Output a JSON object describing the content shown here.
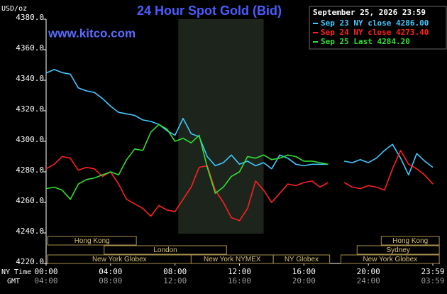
{
  "chart_data": {
    "type": "line",
    "title": "24 Hour Spot Gold (Bid)",
    "watermark": "www.kitco.com",
    "timestamp": "September 25, 2026 23:59",
    "ylabel": "USD/oz",
    "xlabel": "NY Time",
    "x2label": "GMT",
    "x": [
      0,
      0.5,
      1,
      1.5,
      2,
      2.5,
      3,
      3.5,
      4,
      4.5,
      5,
      5.5,
      6,
      6.5,
      7,
      7.5,
      8,
      8.5,
      9,
      9.5,
      10,
      10.5,
      11,
      11.5,
      12,
      12.5,
      13,
      13.5,
      14,
      14.5,
      15,
      15.5,
      16,
      16.5,
      17,
      17.5,
      18,
      18.5,
      19,
      19.5,
      20,
      20.5,
      21,
      21.5,
      22,
      22.5,
      23,
      23.5,
      24
    ],
    "series": [
      {
        "name": "Sep 23 NY close 4286.00",
        "color": "#40c8ff",
        "values": [
          4344.7,
          4347,
          4345,
          4344,
          4335,
          4333,
          4332,
          4328,
          4323,
          4319,
          4318,
          4317,
          4314,
          4313,
          4311,
          4307,
          4304,
          4315,
          4305,
          4303,
          4290,
          4284,
          4286,
          4291,
          4285,
          4287,
          4284,
          4286,
          4282,
          4291,
          4289,
          4285,
          4284,
          4285,
          4285,
          4285,
          null,
          4287,
          4286,
          4288,
          4286,
          4289,
          4294,
          4298,
          4289,
          4278,
          4292,
          4287,
          4283
        ]
      },
      {
        "name": "Sep 24 NY close 4273.40",
        "color": "#ff2020",
        "values": [
          4282,
          4285,
          4290,
          4289,
          4281,
          4283,
          4282,
          4277,
          4280,
          4272,
          4262,
          4259,
          4256,
          4251,
          4258,
          4255,
          4254,
          4262,
          4270,
          4283,
          4284,
          4268,
          4260,
          4250,
          4248,
          4256,
          4274,
          4268,
          4260,
          4266,
          4272,
          4271,
          4273,
          4274,
          4270,
          4273,
          null,
          4273,
          4270,
          4269,
          4271,
          4270,
          4268,
          4282,
          4294,
          4285,
          4282,
          4278,
          4272
        ]
      },
      {
        "name": "Sep 25 Last 4284.20",
        "color": "#30e030",
        "values": [
          4269,
          4270,
          4268,
          4262,
          4272,
          4275,
          4276,
          4278,
          4280,
          4278,
          4288,
          4295,
          4294,
          4306,
          4311,
          4308,
          4300,
          4302,
          4299,
          4304,
          4283,
          4266,
          4270,
          4277,
          4280,
          4290,
          4289,
          4291,
          4288,
          4289,
          4291,
          4290,
          4287,
          4287,
          4286,
          4285,
          null,
          null,
          null,
          null,
          null,
          null,
          null,
          null,
          null,
          null,
          null,
          null,
          null
        ]
      }
    ],
    "ylim": [
      4220,
      4380
    ],
    "yticks": [
      {
        "value": 4220,
        "label": "4220.0"
      },
      {
        "value": 4240,
        "label": "4240.0"
      },
      {
        "value": 4260,
        "label": "4260.0"
      },
      {
        "value": 4280,
        "label": "4280.0"
      },
      {
        "value": 4300,
        "label": "4300.0"
      },
      {
        "value": 4320,
        "label": "4320.0"
      },
      {
        "value": 4340,
        "label": "4340.0"
      },
      {
        "value": 4360,
        "label": "4360.0"
      },
      {
        "value": 4380,
        "label": "4380.0"
      }
    ],
    "xlim": [
      0,
      24
    ],
    "xticks": [
      {
        "value": 0,
        "label": "00:00"
      },
      {
        "value": 4,
        "label": "04:00"
      },
      {
        "value": 8,
        "label": "08:00"
      },
      {
        "value": 12,
        "label": "12:00"
      },
      {
        "value": 16,
        "label": "16:00"
      },
      {
        "value": 20,
        "label": "20:00"
      },
      {
        "value": 24,
        "label": "23:59"
      }
    ],
    "gmt_labels": [
      "04:00",
      "08:00",
      "12:00",
      "16:00",
      "20:00",
      "24:00",
      "03:59"
    ],
    "shaded_x": [
      8.2,
      13.5
    ],
    "session_rows": [
      [
        {
          "label": "Hong Kong",
          "start": 0.1,
          "end": 5.6
        },
        {
          "label": "Hong Kong",
          "start": 20.8,
          "end": 24.4
        }
      ],
      [
        {
          "label": "London",
          "start": 3.6,
          "end": 11.2
        },
        {
          "label": "Sydney",
          "start": 19.3,
          "end": 24.4
        }
      ],
      [
        {
          "label": "New York Globex",
          "start": 0.1,
          "end": 9.0
        },
        {
          "label": "New York NYMEX",
          "start": 9.0,
          "end": 14.1
        },
        {
          "label": "NY Globex",
          "start": 14.1,
          "end": 17.6
        },
        {
          "label": "New York Globex",
          "start": 18.3,
          "end": 24.4
        }
      ]
    ]
  }
}
